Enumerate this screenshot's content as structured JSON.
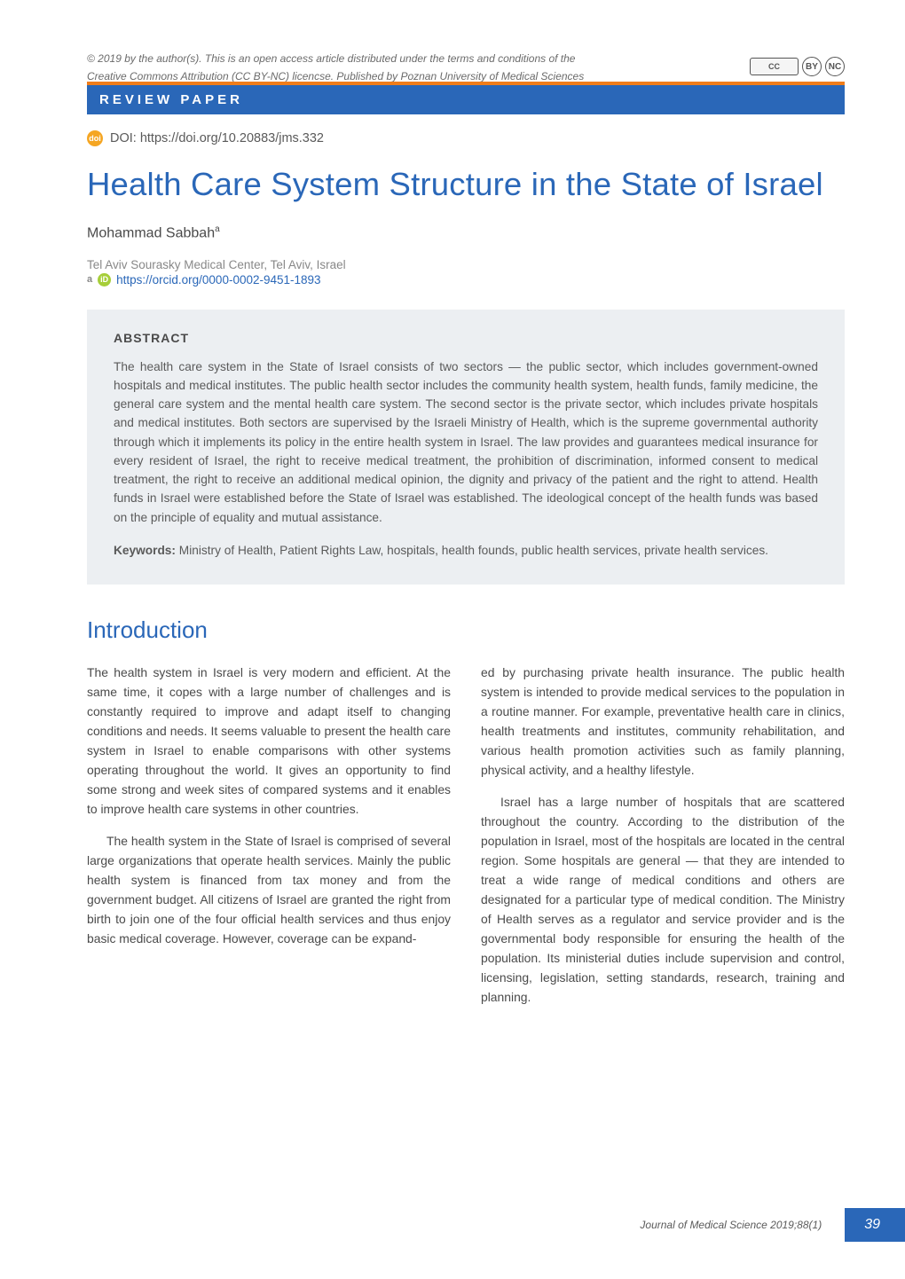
{
  "colors": {
    "brand_blue": "#2a67b8",
    "accent_orange": "#f07d1a",
    "text_gray": "#5a5a5a",
    "light_gray_bg": "#eceff2",
    "orcid_green": "#a6ce39",
    "doi_orange": "#f5a623"
  },
  "license": {
    "line1": "© 2019 by the author(s). This is an open access article distributed under the terms and conditions of the",
    "line2": "Creative Commons Attribution (CC BY-NC) licencse. Published by Poznan University of Medical Sciences",
    "cc_label": "CC",
    "by_label": "BY",
    "nc_label": "NC"
  },
  "label_bar": "REVIEW PAPER",
  "doi": {
    "badge": "doi",
    "text": "DOI: https://doi.org/10.20883/jms.332"
  },
  "title": "Health Care System Structure in the State of Israel",
  "author": {
    "name": "Mohammad Sabbah",
    "sup": "a"
  },
  "affiliation": "Tel Aviv Sourasky Medical Center, Tel Aviv, Israel",
  "orcid": {
    "sup": "a",
    "icon": "iD",
    "url": "https://orcid.org/0000-0002-9451-1893"
  },
  "abstract": {
    "heading": "ABSTRACT",
    "body": "The health care system in the State of Israel consists of two sectors — the public sector, which includes government-owned hospitals and medical institutes. The public health sector includes the community health system, health funds, family medicine, the general care system and the mental health care system. The second sector is the private sector, which includes private hospitals and medical institutes. Both sectors are supervised by the Israeli Ministry of Health, which is the supreme governmental authority through which it implements its policy in the entire health system in Israel. The law provides and guarantees medical insurance for every resident of Israel, the right to receive medical treatment, the prohibition of discrimination, informed consent to medical treatment, the right to receive an additional medical opinion, the dignity and privacy of the patient and the right to attend. Health funds in Israel were established before the State of Israel was established. The ideological concept of the health funds was based on the principle of equality and mutual assistance.",
    "keywords_label": "Keywords:",
    "keywords": " Ministry of Health, Patient Rights Law, hospitals, health founds, public health services, private health services."
  },
  "section_heading": "Introduction",
  "body": {
    "col1_p1": "The health system in Israel is very modern and efficient. At the same time, it copes with a large number of challenges and is constantly required to improve and adapt itself to changing conditions and needs. It seems valuable to present the health care system in Israel to enable comparisons with other systems operating throughout the world. It gives an opportunity to find some strong and week sites of compared systems and it enables to improve health care systems in other countries.",
    "col1_p2": "The health system in the State of Israel is comprised of several large organizations that operate health services. Mainly the public health system is financed from tax money and from the government budget. All citizens of Israel are granted the right from birth to join one of the four official health services and thus enjoy basic medical coverage. However, coverage can be expand-",
    "col2_p1": "ed by purchasing private health insurance. The public health system is intended to provide medical services to the population in a routine manner. For example, preventative health care in clinics, health treatments and institutes, community rehabilitation, and various health promotion activities such as family planning, physical activity, and a healthy lifestyle.",
    "col2_p2": "Israel has a large number of hospitals that are scattered throughout the country. According to the distribution of the population in Israel, most of the hospitals are located in the central region. Some hospitals are general — that they are intended to treat a wide range of medical conditions and others are designated for a particular type of medical condition. The Ministry of Health serves as a regulator and service provider and is the governmental body responsible for ensuring the health of the population. Its ministerial duties include supervision and control, licensing, legislation, setting standards, research, training and planning."
  },
  "footer": {
    "citation": "Journal of Medical Science 2019;88(1)",
    "page_number": "39"
  }
}
